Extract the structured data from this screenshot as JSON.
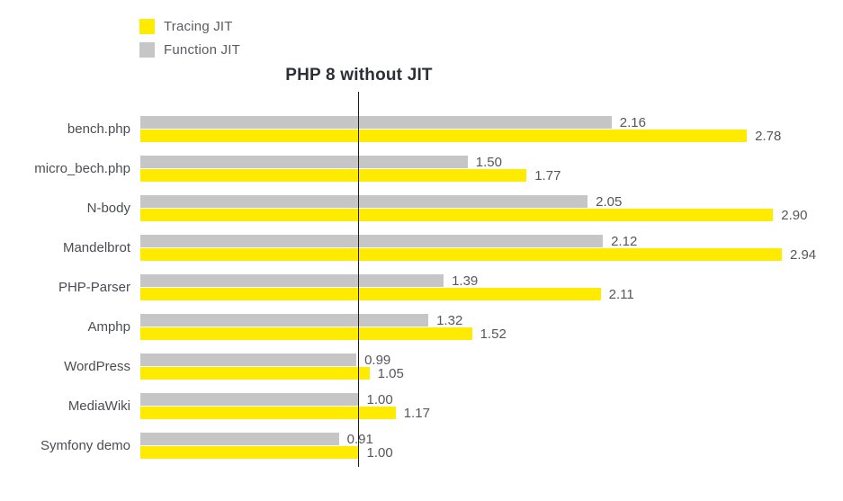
{
  "chart_data": {
    "type": "bar",
    "orientation": "horizontal",
    "title": "PHP 8 without JIT",
    "categories": [
      "bench.php",
      "micro_bech.php",
      "N-body",
      "Mandelbrot",
      "PHP-Parser",
      "Amphp",
      "WordPress",
      "MediaWiki",
      "Symfony demo"
    ],
    "series": [
      {
        "name": "Tracing JIT",
        "color": "#ffeb00",
        "values": [
          2.78,
          1.77,
          2.9,
          2.94,
          2.11,
          1.52,
          1.05,
          1.17,
          1.0
        ]
      },
      {
        "name": "Function JIT",
        "color": "#c6c6c6",
        "values": [
          2.16,
          1.5,
          2.05,
          2.12,
          1.39,
          1.32,
          0.99,
          1.0,
          0.91
        ]
      }
    ],
    "bar_order_per_category": [
      "Function JIT",
      "Tracing JIT"
    ],
    "reference_line": {
      "value": 1.0
    },
    "value_label_format": "two-decimals",
    "xlim": [
      0,
      3.0
    ],
    "grid": false,
    "legend_position": "top-left",
    "axes_visible": false
  },
  "colors": {
    "background": "#ffffff",
    "tracing_jit_bar": "#ffeb00",
    "function_jit_bar": "#c6c6c6",
    "reference_line": "#1c1c1c",
    "title_text": "#2c2f36",
    "category_label_text": "#4b4d52",
    "value_label_text": "#55575c",
    "legend_text": "#595b60"
  }
}
